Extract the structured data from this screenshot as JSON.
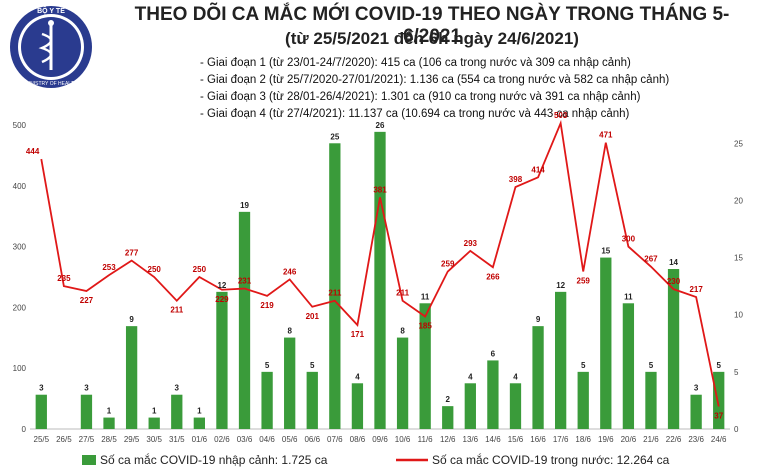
{
  "header": {
    "logo_text_top": "BỘ Y TẾ",
    "logo_text_bottom": "MINISTRY OF HEALTH",
    "title": "THEO DÕI CA MẮC MỚI COVID-19 THEO NGÀY TRONG THÁNG 5-6/2021",
    "subtitle": "(từ 25/5/2021 đến 6h ngày 24/6/2021)",
    "phases": [
      "Giai đoạn 1 (từ 23/01-24/7/2020): 415 ca (106 ca trong nước và 309 ca nhập cảnh)",
      "Giai đoạn 2 (từ 25/7/2020-27/01/2021): 1.136 ca (554 ca trong nước và 582 ca nhập cảnh)",
      "Giai đoạn 3 (từ 28/01-26/4/2021): 1.301 ca (910 ca trong nước và 391 ca nhập cảnh)",
      "Giai đoạn 4 (từ 27/4/2021): 11.137 ca (10.694 ca trong nước và 443 ca nhập cảnh)"
    ]
  },
  "colors": {
    "bar": "#3a9b3a",
    "line": "#e01818",
    "line_label": "#c00000"
  },
  "chart_data": {
    "type": "bar",
    "categories": [
      "25/5",
      "26/5",
      "27/5",
      "28/5",
      "29/5",
      "30/5",
      "31/5",
      "01/6",
      "02/6",
      "03/6",
      "04/6",
      "05/6",
      "06/6",
      "07/6",
      "08/6",
      "09/6",
      "10/6",
      "11/6",
      "12/6",
      "13/6",
      "14/6",
      "15/6",
      "16/6",
      "17/6",
      "18/6",
      "19/6",
      "20/6",
      "21/6",
      "22/6",
      "23/6",
      "24/6"
    ],
    "series": [
      {
        "name": "Số ca mắc COVID-19 nhập cảnh: 1.725 ca",
        "type": "bar",
        "axis": "right",
        "values": [
          3,
          0,
          3,
          1,
          9,
          1,
          3,
          1,
          12,
          19,
          5,
          8,
          5,
          25,
          4,
          26,
          8,
          11,
          2,
          4,
          6,
          4,
          9,
          12,
          5,
          15,
          11,
          5,
          14,
          3,
          5
        ],
        "labels": [
          "3",
          "",
          "3",
          "1",
          "9",
          "1",
          "3",
          "1",
          "12",
          "19",
          "5",
          "8",
          "5",
          "25",
          "4",
          "26",
          "8",
          "11",
          "2",
          "4",
          "6",
          "4",
          "9",
          "12",
          "5",
          "15",
          "11",
          "5",
          "14",
          "3",
          "5"
        ]
      },
      {
        "name": "Số ca mắc COVID-19 trong nước: 12.264 ca",
        "type": "line",
        "axis": "left",
        "values": [
          444,
          235,
          227,
          253,
          277,
          250,
          211,
          250,
          229,
          231,
          219,
          246,
          201,
          211,
          171,
          381,
          211,
          185,
          259,
          293,
          266,
          398,
          414,
          503,
          259,
          471,
          300,
          267,
          230,
          217,
          37
        ],
        "labels": [
          "444",
          "235",
          "227",
          "253",
          "277",
          "250",
          "211",
          "250",
          "229",
          "231",
          "219",
          "246",
          "201",
          "211",
          "171",
          "381",
          "211",
          "185",
          "259",
          "293",
          "266",
          "398",
          "414",
          "503",
          "259",
          "471",
          "300",
          "267",
          "230",
          "217",
          "37"
        ]
      }
    ],
    "y_left": {
      "min": 0,
      "max": 500,
      "ticks": [
        "0",
        "100",
        "200",
        "300",
        "400",
        "500"
      ]
    },
    "y_right": {
      "min": 0,
      "max": 26.6,
      "ticks": [
        "0",
        "5",
        "10",
        "15",
        "20",
        "25"
      ]
    },
    "grid": false,
    "legend": "bottom"
  }
}
